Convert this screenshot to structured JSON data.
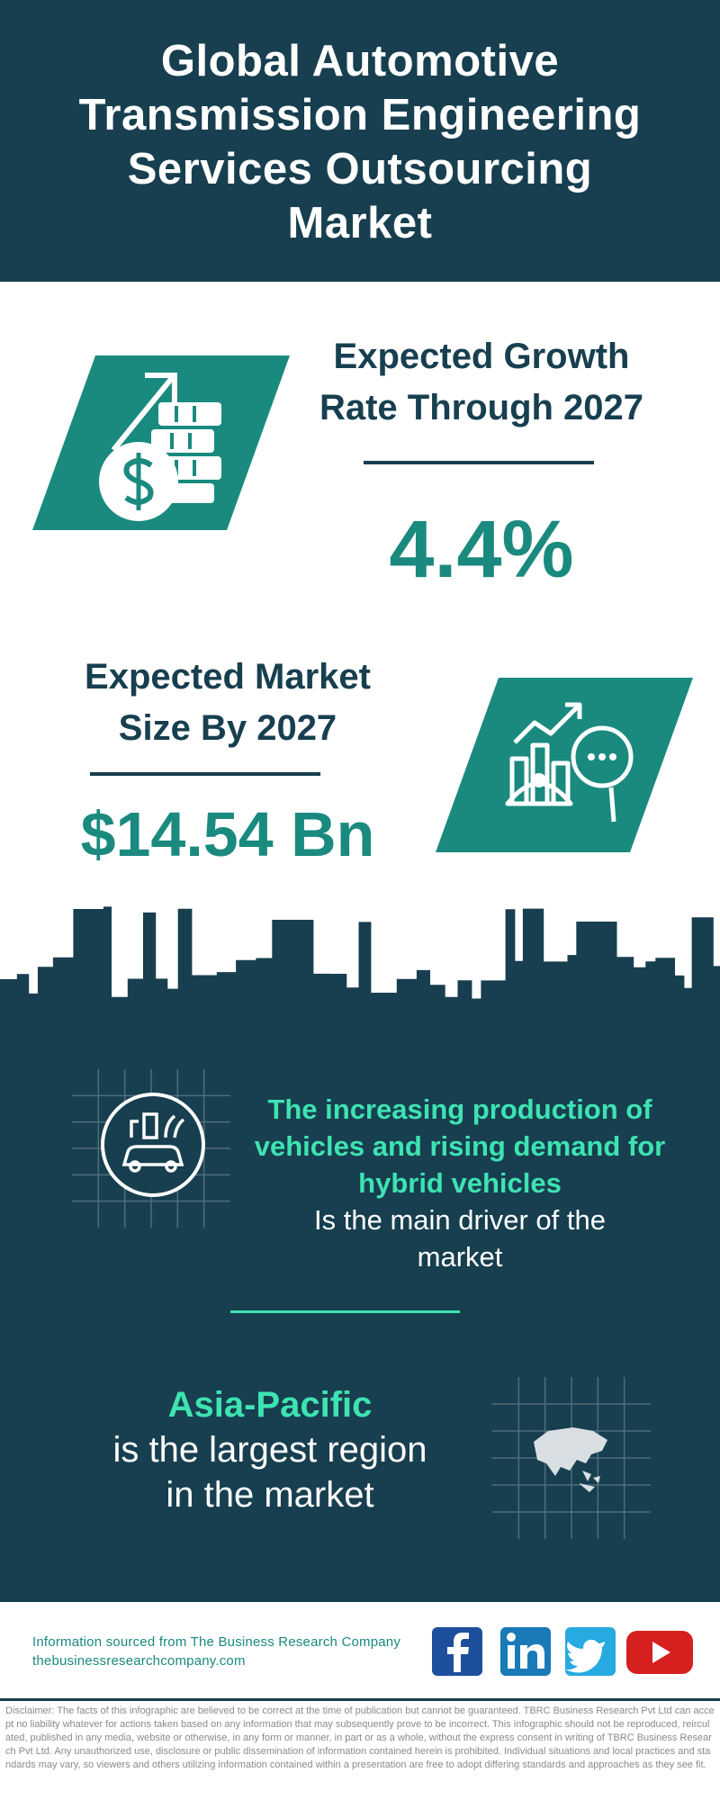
{
  "header": {
    "title_lines": [
      "Global Automotive",
      "Transmission Engineering",
      "Services Outsourcing",
      "Market"
    ]
  },
  "growth": {
    "heading_lines": [
      "Expected Growth",
      "Rate Through 2027"
    ],
    "value": "4.4%"
  },
  "market_size": {
    "heading_lines": [
      "Expected Market",
      "Size By 2027"
    ],
    "value": "$14.54 Bn"
  },
  "driver": {
    "highlight_lines": [
      "The increasing production of",
      "vehicles and rising demand for",
      "hybrid vehicles"
    ],
    "text_lines": [
      "Is the main driver of the",
      "market"
    ]
  },
  "region": {
    "highlight": "Asia-Pacific",
    "text_lines": [
      "is the largest region",
      "in the market"
    ]
  },
  "footer": {
    "source": "Information sourced from The Business Research Company",
    "url": "thebusinessresearchcompany.com"
  },
  "disclaimer": "Disclaimer: The facts of this infographic are believed to be correct at the time of publication but cannot be guaranteed. TBRC Business Research Pvt Ltd can accept no liability whatever for actions taken based on any information that may subsequently prove to be incorrect. This infographic should not be reproduced, reirculated, published in any media, website or otherwise, in any form or manner, in part or as a whole, without the express consent in writing of TBRC Business Research Pvt Ltd. Any unauthorized use, disclosure or public dissemination of information contained herein is prohibited. Individual situations and local practices and standards may vary, so viewers and others utilizing information contained within a presentation are free to adopt differing standards and approaches as they see fit."
}
